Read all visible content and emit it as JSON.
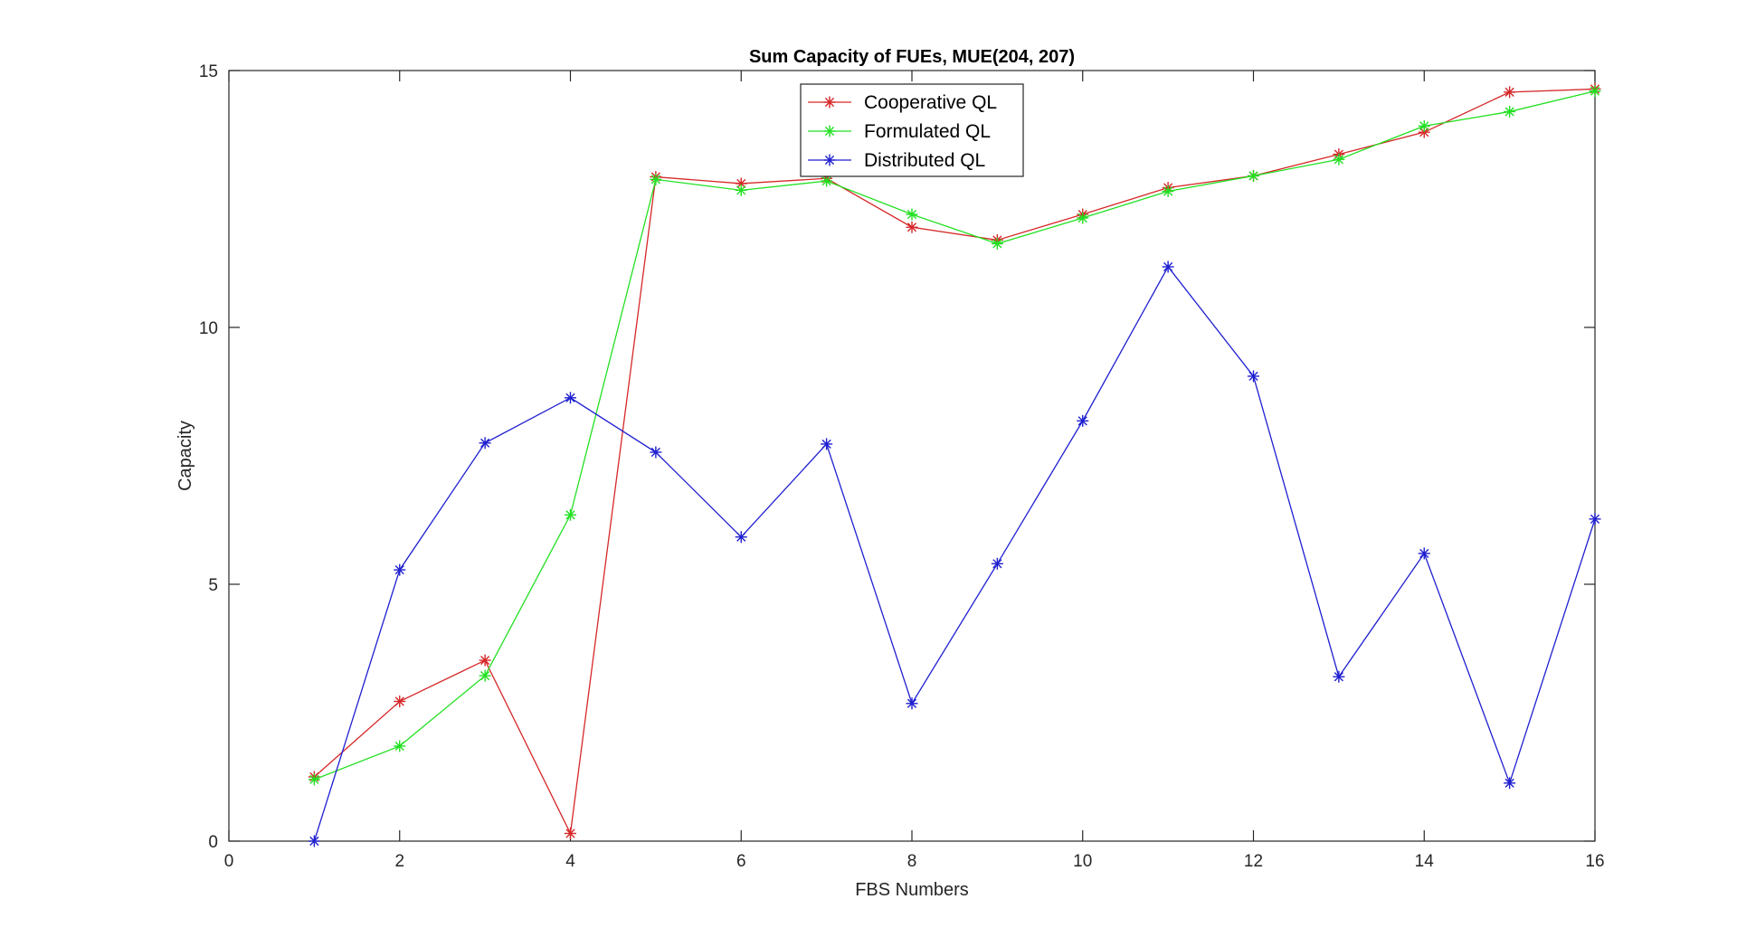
{
  "chart_data": {
    "type": "line",
    "title": "Sum Capacity of FUEs, MUE(204, 207)",
    "xlabel": "FBS Numbers",
    "ylabel": "Capacity",
    "xlim": [
      0,
      16
    ],
    "ylim": [
      0,
      15
    ],
    "xticks": [
      0,
      2,
      4,
      6,
      8,
      10,
      12,
      14,
      16
    ],
    "yticks": [
      0,
      5,
      10,
      15
    ],
    "grid": false,
    "legend_position": "top-center",
    "marker": "asterisk",
    "x": [
      1,
      2,
      3,
      4,
      5,
      6,
      7,
      8,
      9,
      10,
      11,
      12,
      13,
      14,
      15,
      16
    ],
    "series": [
      {
        "name": "Cooperative QL",
        "color": "#d62728",
        "values": [
          1.25,
          2.72,
          3.52,
          0.15,
          12.93,
          12.8,
          12.9,
          11.95,
          11.7,
          12.2,
          12.72,
          12.95,
          13.37,
          13.8,
          14.58,
          14.64
        ]
      },
      {
        "name": "Formulated QL",
        "color": "#22e022",
        "values": [
          1.2,
          1.85,
          3.22,
          6.35,
          12.88,
          12.67,
          12.85,
          12.2,
          11.63,
          12.13,
          12.65,
          12.95,
          13.27,
          13.92,
          14.2,
          14.6
        ]
      },
      {
        "name": "Distributed QL",
        "color": "#1f1fd0",
        "values": [
          0.0,
          5.28,
          7.75,
          8.63,
          7.57,
          5.92,
          7.73,
          2.68,
          5.4,
          8.18,
          11.18,
          9.05,
          3.2,
          5.6,
          1.13,
          6.27
        ]
      }
    ]
  }
}
